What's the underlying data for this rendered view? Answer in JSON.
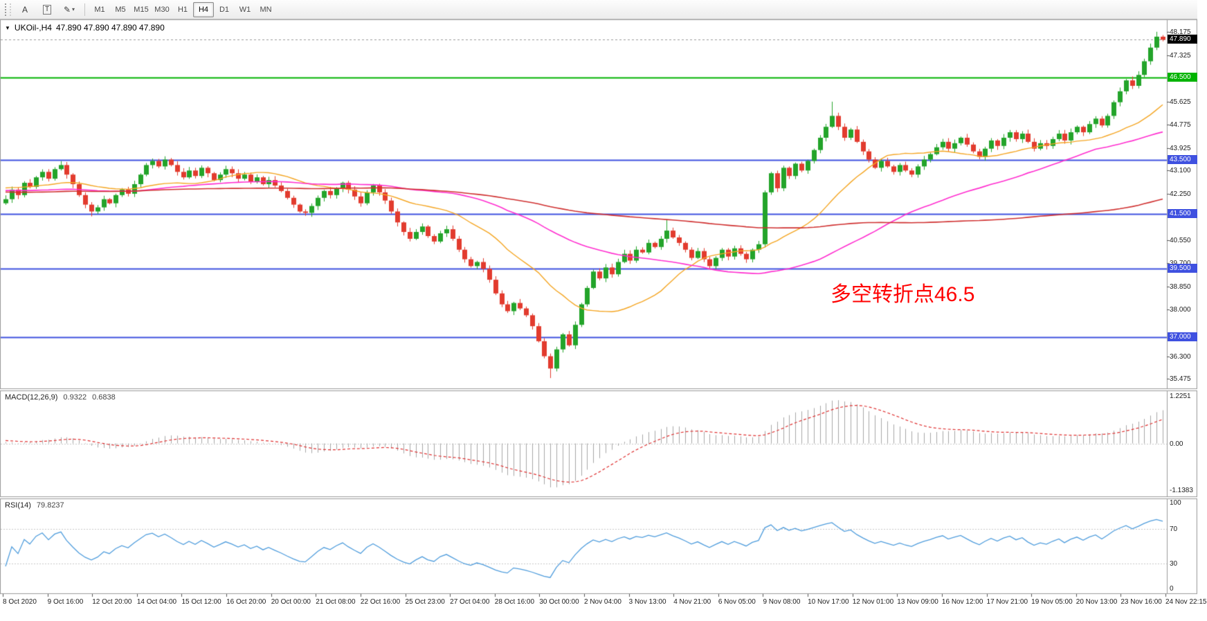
{
  "toolbar": {
    "arrow_tool_label": "A",
    "text_tool_label": "T",
    "draw_tool_glyph": "✎",
    "dropdown_glyph": "▾",
    "timeframes": [
      "M1",
      "M5",
      "M15",
      "M30",
      "H1",
      "H4",
      "D1",
      "W1",
      "MN"
    ],
    "active_timeframe": "H4"
  },
  "chart": {
    "menu_glyph": "▼",
    "symbol_period": "UKOil-,H4",
    "ohlc_text": "47.890 47.890 47.890 47.890",
    "annotation_text": "多空转折点46.5",
    "annotation_color": "#ff0000"
  },
  "chart_data": {
    "type": "candlestick",
    "symbol": "UKOil-",
    "timeframe": "H4",
    "title": "UKOil-,H4",
    "last_price": 47.89,
    "ylim": [
      35.3,
      48.38
    ],
    "y_ticks": [
      "48.175",
      "47.325",
      "45.625",
      "44.775",
      "43.925",
      "43.100",
      "42.250",
      "40.550",
      "39.700",
      "38.850",
      "38.000",
      "36.300",
      "35.475"
    ],
    "current_price": {
      "value": 47.89,
      "label": "47.890",
      "color": "#000000"
    },
    "levels": [
      {
        "price": 46.5,
        "label": "46.500",
        "color": "#00b300"
      },
      {
        "price": 43.5,
        "label": "43.500",
        "color": "#3f51e0"
      },
      {
        "price": 41.5,
        "label": "41.500",
        "color": "#3f51e0"
      },
      {
        "price": 39.5,
        "label": "39.500",
        "color": "#3f51e0"
      },
      {
        "price": 37.0,
        "label": "37.000",
        "color": "#3f51e0"
      }
    ],
    "candle_colors": {
      "up": "#23a42a",
      "down": "#e23b2e"
    },
    "moving_averages": [
      {
        "period": 21,
        "color": "#f5a623"
      },
      {
        "period": 55,
        "color": "#ff2ed0"
      },
      {
        "period": 120,
        "color": "#d03030"
      }
    ],
    "x_labels": [
      "8 Oct 2020",
      "9 Oct 16:00",
      "12 Oct 20:00",
      "14 Oct 04:00",
      "15 Oct 12:00",
      "16 Oct 20:00",
      "20 Oct 00:00",
      "21 Oct 08:00",
      "22 Oct 16:00",
      "25 Oct 23:00",
      "27 Oct 04:00",
      "28 Oct 16:00",
      "30 Oct 00:00",
      "2 Nov 04:00",
      "3 Nov 13:00",
      "4 Nov 21:00",
      "6 Nov 05:00",
      "9 Nov 08:00",
      "10 Nov 17:00",
      "12 Nov 01:00",
      "13 Nov 09:00",
      "16 Nov 12:00",
      "17 Nov 21:00",
      "19 Nov 05:00",
      "20 Nov 13:00",
      "23 Nov 16:00",
      "24 Nov 22:15"
    ],
    "first_open": 41.9,
    "closes": [
      42.05,
      42.4,
      42.2,
      42.65,
      42.5,
      42.85,
      43.05,
      42.8,
      43.15,
      43.3,
      42.95,
      42.6,
      42.2,
      41.85,
      41.6,
      41.75,
      42.05,
      41.9,
      42.2,
      42.4,
      42.25,
      42.6,
      42.95,
      43.3,
      43.45,
      43.25,
      43.5,
      43.3,
      43.05,
      42.85,
      43.1,
      42.9,
      43.2,
      43.0,
      42.75,
      42.95,
      43.15,
      43.0,
      42.8,
      42.95,
      42.7,
      42.85,
      42.6,
      42.75,
      42.55,
      42.35,
      42.1,
      41.85,
      41.6,
      41.55,
      41.8,
      42.1,
      42.35,
      42.2,
      42.45,
      42.65,
      42.4,
      42.15,
      41.9,
      42.3,
      42.55,
      42.3,
      42.0,
      41.6,
      41.2,
      40.85,
      40.6,
      40.85,
      41.05,
      40.7,
      40.5,
      40.8,
      40.95,
      40.6,
      40.2,
      39.85,
      39.6,
      39.75,
      39.5,
      39.1,
      38.6,
      38.2,
      37.95,
      38.25,
      38.05,
      37.8,
      37.4,
      36.85,
      36.3,
      35.85,
      36.55,
      37.1,
      36.7,
      37.45,
      38.2,
      38.8,
      39.4,
      39.15,
      39.55,
      39.3,
      39.75,
      40.05,
      39.8,
      40.2,
      40.1,
      40.45,
      40.3,
      40.6,
      40.9,
      40.65,
      40.45,
      40.2,
      39.9,
      40.15,
      39.85,
      39.6,
      39.9,
      40.2,
      39.95,
      40.25,
      40.05,
      39.85,
      40.2,
      40.4,
      42.3,
      43.0,
      42.45,
      43.2,
      42.9,
      43.35,
      43.1,
      43.45,
      43.85,
      44.3,
      44.7,
      45.1,
      44.7,
      44.3,
      44.6,
      44.15,
      43.8,
      43.5,
      43.2,
      43.45,
      43.25,
      43.05,
      43.3,
      43.1,
      42.95,
      43.25,
      43.5,
      43.7,
      43.95,
      44.15,
      43.9,
      44.1,
      44.3,
      44.05,
      43.8,
      43.6,
      43.9,
      44.2,
      44.0,
      44.3,
      44.5,
      44.25,
      44.45,
      44.15,
      43.9,
      44.1,
      44.0,
      44.25,
      44.45,
      44.2,
      44.5,
      44.7,
      44.5,
      44.8,
      45.0,
      44.75,
      45.1,
      45.6,
      46.0,
      46.4,
      46.2,
      46.6,
      47.1,
      47.6,
      48.0,
      47.89
    ],
    "spikes": {
      "14": {
        "low": 41.42
      },
      "26": {
        "high": 43.62
      },
      "49": {
        "low": 41.44
      },
      "89": {
        "low": 35.5
      },
      "108": {
        "high": 41.3
      },
      "115": {
        "low": 39.5
      },
      "135": {
        "high": 45.62
      },
      "188": {
        "high": 48.18
      },
      "189": {
        "high": 48.06
      }
    },
    "indicators": [
      {
        "type": "macd",
        "title": "MACD(12,26,9)",
        "params": [
          12,
          26,
          9
        ],
        "value_main": "0.9322",
        "value_signal": "0.6838",
        "scale_ticks": [
          "1.2251",
          "0.00",
          "-1.1383"
        ],
        "histogram_color": "#a6a6a6",
        "signal_color": "#e03030",
        "signal_style": "dashed"
      },
      {
        "type": "rsi",
        "title": "RSI(14)",
        "params": [
          14
        ],
        "value": "79.8237",
        "scale_ticks": [
          "100",
          "70",
          "30",
          "0"
        ],
        "levels": [
          70,
          30
        ],
        "line_color": "#4f9ddd"
      }
    ]
  }
}
